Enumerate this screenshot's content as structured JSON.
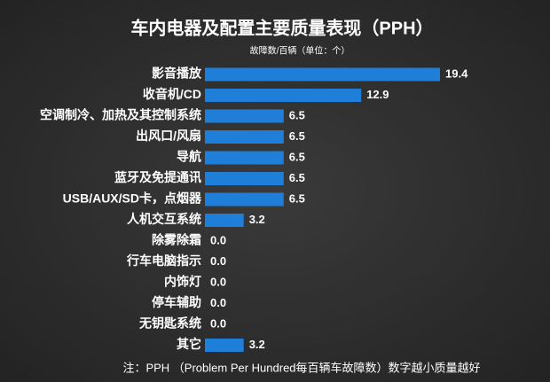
{
  "chart_data": {
    "type": "bar",
    "orientation": "horizontal",
    "title": "车内电器及配置主要质量表现（PPH）",
    "subtitle": "故障数/百辆（单位：个）",
    "note": "注：PPH （Problem Per Hundred每百辆车故障数）数字越小质量越好",
    "categories": [
      "影音播放",
      "收音机/CD",
      "空调制冷、加热及其控制系统",
      "出风口/风扇",
      "导航",
      "蓝牙及免提通讯",
      "USB/AUX/SD卡，点烟器",
      "人机交互系统",
      "除雾除霜",
      "行车电脑指示",
      "内饰灯",
      "停车辅助",
      "无钥匙系统",
      "其它"
    ],
    "values": [
      19.4,
      12.9,
      6.5,
      6.5,
      6.5,
      6.5,
      6.5,
      3.2,
      0,
      0,
      0,
      0,
      0,
      3.2
    ],
    "value_labels": [
      "19.4",
      "12.9",
      "6.5",
      "6.5",
      "6.5",
      "6.5",
      "6.5",
      "3.2",
      "0.0",
      "0.0",
      "0.0",
      "0.0",
      "0.0",
      "3.2"
    ],
    "color": "#1f7fd8"
  }
}
